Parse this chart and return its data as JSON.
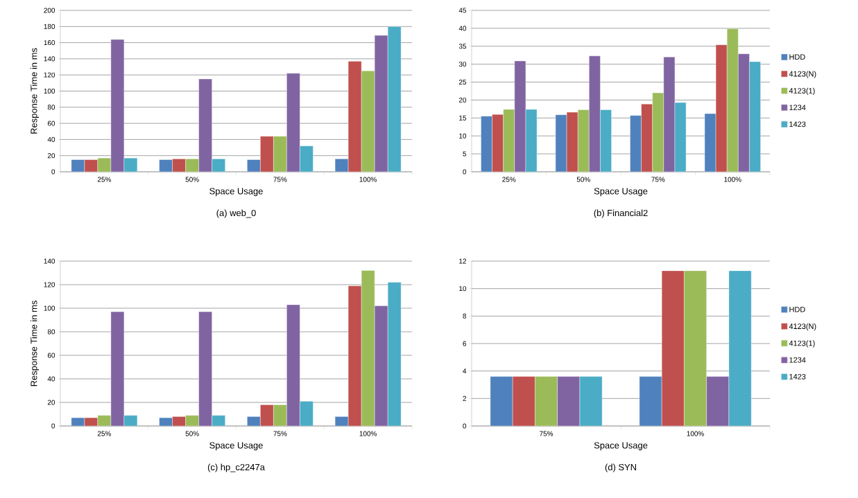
{
  "chart_data": [
    {
      "type": "bar",
      "title": "(a) web_0",
      "xlabel": "Space Usage",
      "ylabel": "Response Time in ms",
      "categories": [
        "25%",
        "50%",
        "75%",
        "100%"
      ],
      "series": [
        {
          "color": "#4f81bd",
          "values": [
            15,
            15,
            15,
            16
          ]
        },
        {
          "color": "#c0504d",
          "values": [
            15,
            16,
            44,
            137
          ]
        },
        {
          "color": "#9bbb59",
          "values": [
            17,
            16,
            44,
            125
          ]
        },
        {
          "color": "#8064a2",
          "values": [
            164,
            115,
            122,
            169
          ]
        },
        {
          "color": "#4bacc6",
          "values": [
            17,
            16,
            32,
            180
          ]
        }
      ],
      "ylim": [
        0,
        200
      ],
      "yticks": [
        0,
        20,
        40,
        60,
        80,
        100,
        120,
        140,
        160,
        180,
        200
      ],
      "grid": "y"
    },
    {
      "type": "bar",
      "title": "(b) Financial2",
      "xlabel": "Space Usage",
      "categories": [
        "25%",
        "50%",
        "75%",
        "100%"
      ],
      "series": [
        {
          "name": "HDD",
          "color": "#4f81bd",
          "values": [
            15.5,
            15.9,
            15.7,
            16.2
          ]
        },
        {
          "name": "4123(N)",
          "color": "#c0504d",
          "values": [
            16,
            16.6,
            18.9,
            35.4
          ]
        },
        {
          "name": "4123(1)",
          "color": "#9bbb59",
          "values": [
            17.4,
            17.3,
            22,
            39.9
          ]
        },
        {
          "name": "1234",
          "color": "#8064a2",
          "values": [
            30.9,
            32.3,
            32,
            32.9
          ]
        },
        {
          "name": "1423",
          "color": "#4bacc6",
          "values": [
            17.4,
            17.3,
            19.3,
            30.7
          ]
        }
      ],
      "ylim": [
        0,
        45
      ],
      "yticks": [
        0,
        5,
        10,
        15,
        20,
        25,
        30,
        35,
        40,
        45
      ],
      "grid": "y",
      "legend": "right"
    },
    {
      "type": "bar",
      "title": "(c) hp_c2247a",
      "xlabel": "Space Usage",
      "ylabel": "Response Time in ms",
      "categories": [
        "25%",
        "50%",
        "75%",
        "100%"
      ],
      "series": [
        {
          "color": "#4f81bd",
          "values": [
            7,
            7,
            8,
            8
          ]
        },
        {
          "color": "#c0504d",
          "values": [
            7,
            8,
            18,
            119
          ]
        },
        {
          "color": "#9bbb59",
          "values": [
            9,
            9,
            18,
            132
          ]
        },
        {
          "color": "#8064a2",
          "values": [
            97,
            97,
            103,
            102
          ]
        },
        {
          "color": "#4bacc6",
          "values": [
            9,
            9,
            21,
            122
          ]
        }
      ],
      "ylim": [
        0,
        140
      ],
      "yticks": [
        0,
        20,
        40,
        60,
        80,
        100,
        120,
        140
      ],
      "grid": "y"
    },
    {
      "type": "bar",
      "title": "(d) SYN",
      "xlabel": "Space Usage",
      "categories": [
        "75%",
        "100%"
      ],
      "series": [
        {
          "name": "HDD",
          "color": "#4f81bd",
          "values": [
            3.6,
            3.6
          ]
        },
        {
          "name": "4123(N)",
          "color": "#c0504d",
          "values": [
            3.6,
            11.3
          ]
        },
        {
          "name": "4123(1)",
          "color": "#9bbb59",
          "values": [
            3.6,
            11.3
          ]
        },
        {
          "name": "1234",
          "color": "#8064a2",
          "values": [
            3.6,
            3.6
          ]
        },
        {
          "name": "1423",
          "color": "#4bacc6",
          "values": [
            3.6,
            11.3
          ]
        }
      ],
      "ylim": [
        0,
        12
      ],
      "yticks": [
        0,
        2,
        4,
        6,
        8,
        10,
        12
      ],
      "grid": "y",
      "legend": "right"
    }
  ]
}
